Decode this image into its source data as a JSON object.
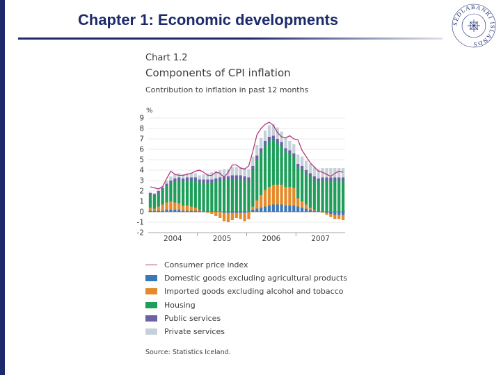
{
  "slide": {
    "title": "Chapter 1: Economic developments"
  },
  "seal": {
    "text": "SEÐLABANKI ÍSLANDS"
  },
  "chart_header": {
    "number": "Chart 1.2",
    "title": "Components of CPI inflation",
    "subtitle": "Contribution to inflation in past 12 months",
    "unit": "%"
  },
  "source": "Source: Statistics Iceland.",
  "colors": {
    "cpi": "#b03a7a",
    "domestic": "#3a79b7",
    "imported": "#e48a2a",
    "housing": "#1e9e5a",
    "public": "#6a63a6",
    "private": "#c6d0d9",
    "brand": "#1c2a6b"
  },
  "chart_data": {
    "type": "bar",
    "stacked": true,
    "title": "Components of CPI inflation",
    "subtitle": "Contribution to inflation in past 12 months",
    "ylabel": "%",
    "ylim": [
      -2,
      9
    ],
    "yticks": [
      9,
      8,
      7,
      6,
      5,
      4,
      3,
      2,
      1,
      0,
      -1,
      -2
    ],
    "grid": true,
    "x_labels": [
      "2004",
      "2005",
      "2006",
      "2007"
    ],
    "months_per_year": 12,
    "legend": [
      {
        "key": "cpi",
        "label": "Consumer price index",
        "kind": "line"
      },
      {
        "key": "domestic",
        "label": "Domestic goods excluding agricultural products",
        "kind": "bar"
      },
      {
        "key": "imported",
        "label": "Imported goods excluding alcohol and tobacco",
        "kind": "bar"
      },
      {
        "key": "housing",
        "label": "Housing",
        "kind": "bar"
      },
      {
        "key": "public",
        "label": "Public services",
        "kind": "bar"
      },
      {
        "key": "private",
        "label": "Private services",
        "kind": "bar"
      }
    ],
    "series": [
      {
        "key": "domestic",
        "name": "Domestic goods excluding agricultural products",
        "values": [
          0.1,
          0.1,
          0.1,
          0.1,
          0.2,
          0.2,
          0.2,
          0.2,
          0.1,
          0.1,
          0.1,
          0.1,
          0.1,
          0.1,
          0.1,
          0.0,
          0.0,
          0.0,
          -0.1,
          -0.1,
          -0.1,
          -0.1,
          -0.1,
          -0.1,
          0.1,
          0.2,
          0.3,
          0.4,
          0.5,
          0.6,
          0.7,
          0.7,
          0.7,
          0.6,
          0.6,
          0.6,
          0.5,
          0.4,
          0.3,
          0.2,
          0.1,
          0.0,
          0.0,
          -0.1,
          -0.2,
          -0.3,
          -0.3,
          -0.3
        ]
      },
      {
        "key": "imported",
        "name": "Imported goods excluding alcohol and tobacco",
        "values": [
          0.3,
          0.2,
          0.4,
          0.6,
          0.7,
          0.8,
          0.7,
          0.6,
          0.5,
          0.5,
          0.4,
          0.3,
          0.1,
          0.0,
          -0.1,
          -0.2,
          -0.4,
          -0.6,
          -0.8,
          -0.9,
          -0.7,
          -0.5,
          -0.6,
          -0.8,
          -0.7,
          0.3,
          0.8,
          1.2,
          1.6,
          1.8,
          1.9,
          1.9,
          1.9,
          1.8,
          1.8,
          1.7,
          0.8,
          0.6,
          0.4,
          0.2,
          0.1,
          0.0,
          -0.1,
          -0.2,
          -0.3,
          -0.4,
          -0.4,
          -0.5
        ]
      },
      {
        "key": "housing",
        "name": "Housing",
        "values": [
          1.2,
          1.2,
          1.3,
          1.4,
          1.6,
          1.8,
          2.0,
          2.2,
          2.3,
          2.4,
          2.5,
          2.6,
          2.6,
          2.7,
          2.7,
          2.8,
          2.9,
          3.0,
          3.1,
          3.1,
          3.1,
          3.1,
          3.1,
          3.0,
          2.8,
          3.5,
          3.9,
          4.1,
          4.3,
          4.4,
          4.3,
          4.0,
          3.7,
          3.4,
          3.2,
          3.0,
          3.0,
          3.1,
          3.0,
          3.0,
          2.9,
          2.9,
          3.0,
          3.0,
          3.0,
          3.0,
          3.0,
          3.0
        ]
      },
      {
        "key": "public",
        "name": "Public services",
        "values": [
          0.2,
          0.2,
          0.2,
          0.2,
          0.2,
          0.2,
          0.3,
          0.3,
          0.3,
          0.3,
          0.3,
          0.3,
          0.3,
          0.3,
          0.3,
          0.3,
          0.3,
          0.3,
          0.3,
          0.3,
          0.4,
          0.4,
          0.4,
          0.4,
          0.4,
          0.4,
          0.4,
          0.4,
          0.4,
          0.4,
          0.4,
          0.4,
          0.4,
          0.3,
          0.3,
          0.3,
          0.3,
          0.3,
          0.3,
          0.3,
          0.3,
          0.3,
          0.3,
          0.3,
          0.3,
          0.3,
          0.3,
          0.3
        ]
      },
      {
        "key": "private",
        "name": "Private services",
        "values": [
          0.1,
          0.1,
          0.1,
          0.2,
          0.3,
          0.4,
          0.4,
          0.4,
          0.4,
          0.4,
          0.4,
          0.4,
          0.4,
          0.5,
          0.6,
          0.7,
          0.7,
          0.7,
          0.7,
          0.7,
          0.8,
          0.8,
          0.8,
          0.8,
          0.8,
          0.9,
          1.0,
          1.0,
          1.0,
          1.1,
          1.1,
          1.1,
          1.0,
          1.0,
          0.9,
          0.9,
          0.9,
          0.9,
          0.9,
          0.9,
          0.9,
          0.9,
          0.9,
          0.9,
          0.9,
          0.9,
          0.9,
          0.9
        ]
      },
      {
        "key": "cpi",
        "name": "Consumer price index",
        "kind": "line",
        "values": [
          2.4,
          2.3,
          2.2,
          2.4,
          3.2,
          3.9,
          3.6,
          3.5,
          3.5,
          3.6,
          3.7,
          3.9,
          4.0,
          3.8,
          3.5,
          3.5,
          3.8,
          3.7,
          3.3,
          3.8,
          4.5,
          4.5,
          4.2,
          4.1,
          4.4,
          5.8,
          7.4,
          8.0,
          8.4,
          8.6,
          8.3,
          7.6,
          7.2,
          7.1,
          7.3,
          7.0,
          6.9,
          5.9,
          5.3,
          4.7,
          4.3,
          3.9,
          3.8,
          3.6,
          3.4,
          3.7,
          3.9,
          3.8
        ]
      }
    ]
  }
}
